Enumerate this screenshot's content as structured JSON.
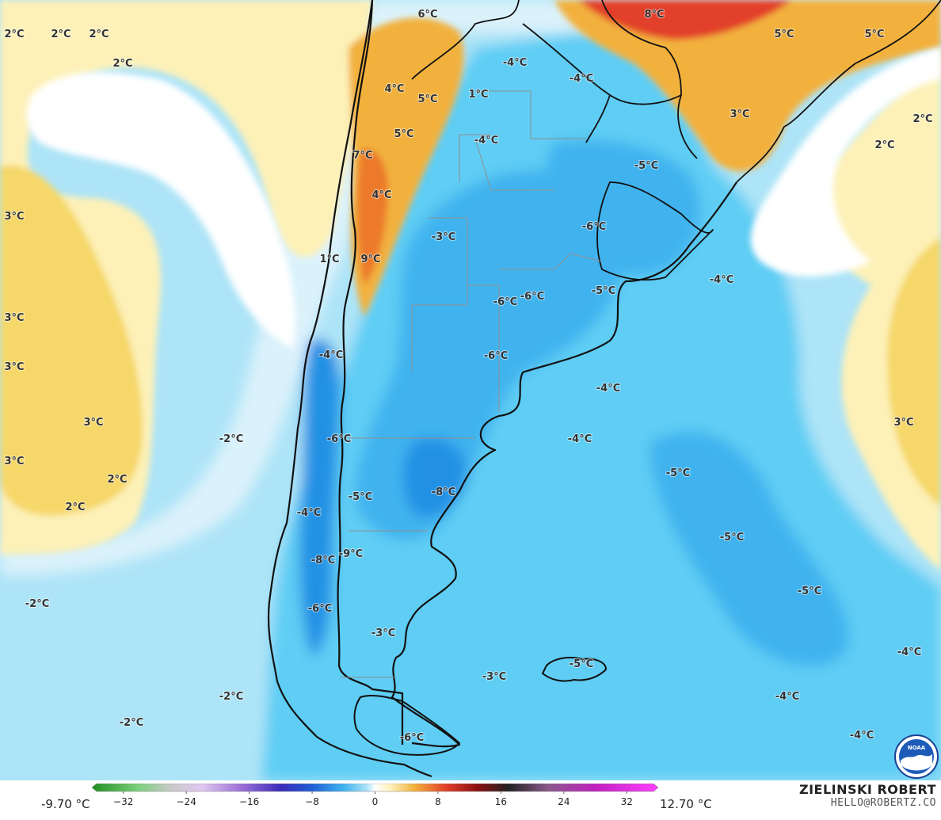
{
  "map": {
    "colors": {
      "warm_light": "#fdf1b8",
      "warm": "#f6d769",
      "warm_strong": "#f2b13c",
      "hot": "#ec7a2a",
      "hottest": "#e2402a",
      "neutral": "#ffffff",
      "cold_pale": "#dbf2fb",
      "cold_light": "#aee4f7",
      "cold": "#5fcdf4",
      "cold_mid": "#3fb3ef",
      "cold_strong": "#2491e4",
      "cold_deep": "#1f5fd6",
      "border": "#111111",
      "province_border": "#8f8f8f"
    },
    "labels": [
      {
        "text": "2°C"
      },
      {
        "text": "2°C"
      },
      {
        "text": "2°C"
      },
      {
        "text": "2°C"
      },
      {
        "text": "3°C"
      },
      {
        "text": "3°C"
      },
      {
        "text": "3°C"
      },
      {
        "text": "3°C"
      },
      {
        "text": "3°C"
      },
      {
        "text": "2°C"
      },
      {
        "text": "2°C"
      },
      {
        "text": "-2°C"
      },
      {
        "text": "-2°C"
      },
      {
        "text": "-2°C"
      },
      {
        "text": "-2°C"
      },
      {
        "text": "6°C"
      },
      {
        "text": "4°C"
      },
      {
        "text": "5°C"
      },
      {
        "text": "5°C"
      },
      {
        "text": "7°C"
      },
      {
        "text": "4°C"
      },
      {
        "text": "9°C"
      },
      {
        "text": "1°C"
      },
      {
        "text": "1°C"
      },
      {
        "text": "-4°C"
      },
      {
        "text": "-4°C"
      },
      {
        "text": "-4°C"
      },
      {
        "text": "-5°C"
      },
      {
        "text": "-3°C"
      },
      {
        "text": "-6°C"
      },
      {
        "text": "-6°C"
      },
      {
        "text": "-6°C"
      },
      {
        "text": "-5°C"
      },
      {
        "text": "-6°C"
      },
      {
        "text": "-4°C"
      },
      {
        "text": "-4°C"
      },
      {
        "text": "-4°C"
      },
      {
        "text": "-4°C"
      },
      {
        "text": "-6°C"
      },
      {
        "text": "-8°C"
      },
      {
        "text": "-5°C"
      },
      {
        "text": "-4°C"
      },
      {
        "text": "-9°C"
      },
      {
        "text": "-8°C"
      },
      {
        "text": "-6°C"
      },
      {
        "text": "-3°C"
      },
      {
        "text": "-3°C"
      },
      {
        "text": "-5°C"
      },
      {
        "text": "-5°C"
      },
      {
        "text": "-5°C"
      },
      {
        "text": "-5°C"
      },
      {
        "text": "-4°C"
      },
      {
        "text": "-4°C"
      },
      {
        "text": "-4°C"
      },
      {
        "text": "8°C"
      },
      {
        "text": "5°C"
      },
      {
        "text": "5°C"
      },
      {
        "text": "3°C"
      },
      {
        "text": "2°C"
      },
      {
        "text": "2°C"
      },
      {
        "text": "3°C"
      },
      {
        "text": "-6°C"
      }
    ]
  },
  "legend": {
    "min_label": "-9.70 °C",
    "max_label": "12.70 °C",
    "ticks": [
      "−32",
      "−24",
      "−16",
      "−8",
      "0",
      "8",
      "16",
      "24",
      "32"
    ],
    "tick_values": [
      -32,
      -24,
      -16,
      -8,
      0,
      8,
      16,
      24,
      32
    ],
    "range": [
      -36,
      36
    ],
    "stops": [
      {
        "v": -36,
        "c": "#1e8f1e"
      },
      {
        "v": -30,
        "c": "#7fd07f"
      },
      {
        "v": -26,
        "c": "#c8c8c8"
      },
      {
        "v": -22,
        "c": "#e0c8f0"
      },
      {
        "v": -17,
        "c": "#9b6fd8"
      },
      {
        "v": -12,
        "c": "#3b2bb8"
      },
      {
        "v": -8,
        "c": "#1f5fd6"
      },
      {
        "v": -4,
        "c": "#3fb3ef"
      },
      {
        "v": -1,
        "c": "#aee4f7"
      },
      {
        "v": 0,
        "c": "#ffffff"
      },
      {
        "v": 2,
        "c": "#fdf1b8"
      },
      {
        "v": 5,
        "c": "#f2b13c"
      },
      {
        "v": 9,
        "c": "#e2402a"
      },
      {
        "v": 13,
        "c": "#8a1010"
      },
      {
        "v": 17,
        "c": "#222222"
      },
      {
        "v": 22,
        "c": "#8a5a8a"
      },
      {
        "v": 28,
        "c": "#c020c0"
      },
      {
        "v": 36,
        "c": "#ff40ff"
      }
    ]
  },
  "brand": {
    "name": "ZIELINSKI ROBERT",
    "email": "HELLO@ROBERTZ.CO",
    "logo_text": "NOAA",
    "logo_icon": "noaa-logo-icon"
  }
}
